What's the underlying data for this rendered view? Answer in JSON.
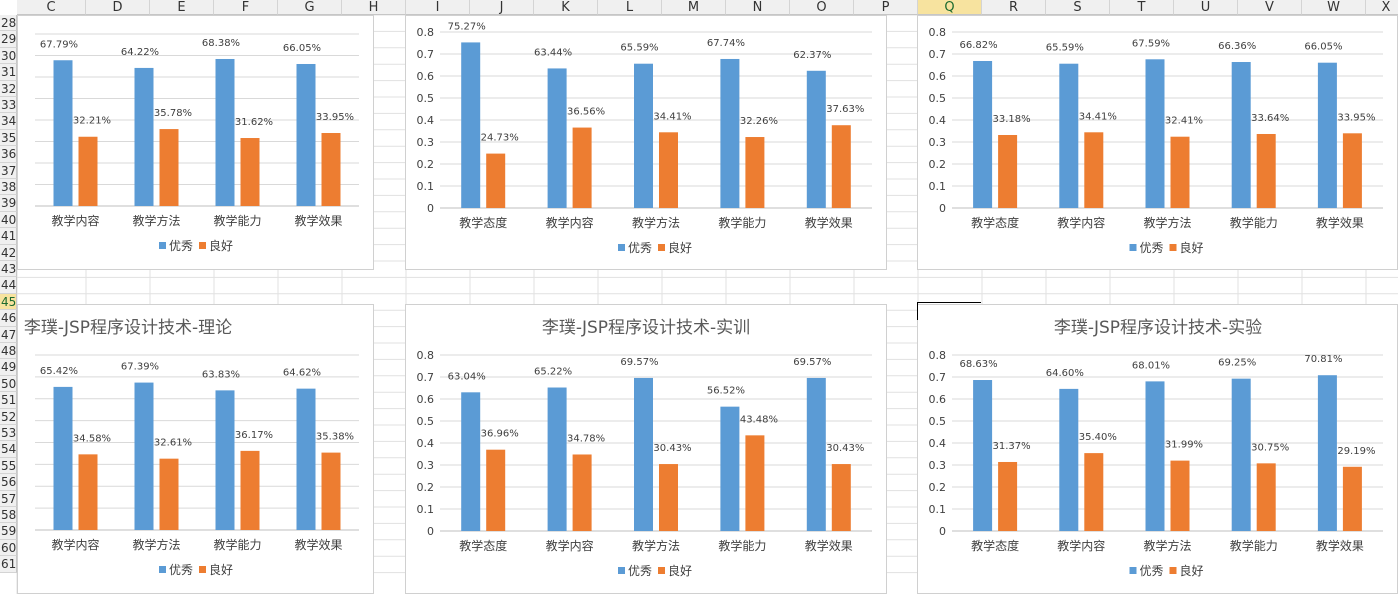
{
  "spreadsheet": {
    "columns": [
      "C",
      "D",
      "E",
      "F",
      "G",
      "H",
      "I",
      "J",
      "K",
      "L",
      "M",
      "N",
      "O",
      "P",
      "Q",
      "R",
      "S",
      "T",
      "U",
      "V",
      "W",
      "X"
    ],
    "selected_column": "Q",
    "rows": [
      "28",
      "29",
      "30",
      "31",
      "32",
      "33",
      "34",
      "35",
      "36",
      "37",
      "38",
      "39",
      "40",
      "41",
      "42",
      "43",
      "44",
      "45",
      "46",
      "47",
      "48",
      "49",
      "50",
      "51",
      "52",
      "53",
      "54",
      "55",
      "56",
      "57",
      "58",
      "59",
      "60",
      "61"
    ],
    "selected_row": "45"
  },
  "colors": {
    "excellent": "#5b9bd5",
    "good": "#ed7d31"
  },
  "chart_data": [
    {
      "type": "bar",
      "title": "",
      "categories": [
        "教学内容",
        "教学方法",
        "教学能力",
        "教学效果"
      ],
      "series": [
        {
          "name": "优秀",
          "values": [
            0.6779,
            0.6422,
            0.6838,
            0.6605
          ],
          "labels": [
            "67.79%",
            "64.22%",
            "68.38%",
            "66.05%"
          ]
        },
        {
          "name": "良好",
          "values": [
            0.3221,
            0.3578,
            0.3162,
            0.3395
          ],
          "labels": [
            "32.21%",
            "35.78%",
            "31.62%",
            "33.95%"
          ]
        }
      ],
      "ylim": [
        0,
        0.8
      ],
      "yticks": [],
      "legend": "bottom"
    },
    {
      "type": "bar",
      "title": "",
      "categories": [
        "教学态度",
        "教学内容",
        "教学方法",
        "教学能力",
        "教学效果"
      ],
      "series": [
        {
          "name": "优秀",
          "values": [
            0.7527,
            0.6344,
            0.6559,
            0.6774,
            0.6237
          ],
          "labels": [
            "75.27%",
            "63.44%",
            "65.59%",
            "67.74%",
            "62.37%"
          ]
        },
        {
          "name": "良好",
          "values": [
            0.2473,
            0.3656,
            0.3441,
            0.3226,
            0.3763
          ],
          "labels": [
            "24.73%",
            "36.56%",
            "34.41%",
            "32.26%",
            "37.63%"
          ]
        }
      ],
      "ylim": [
        0,
        0.8
      ],
      "yticks": [
        "0",
        "0.1",
        "0.2",
        "0.3",
        "0.4",
        "0.5",
        "0.6",
        "0.7",
        "0.8"
      ],
      "legend": "bottom"
    },
    {
      "type": "bar",
      "title": "",
      "categories": [
        "教学态度",
        "教学内容",
        "教学方法",
        "教学能力",
        "教学效果"
      ],
      "series": [
        {
          "name": "优秀",
          "values": [
            0.6682,
            0.6559,
            0.6759,
            0.6636,
            0.6605
          ],
          "labels": [
            "66.82%",
            "65.59%",
            "67.59%",
            "66.36%",
            "66.05%"
          ]
        },
        {
          "name": "良好",
          "values": [
            0.3318,
            0.3441,
            0.3241,
            0.3364,
            0.3395
          ],
          "labels": [
            "33.18%",
            "34.41%",
            "32.41%",
            "33.64%",
            "33.95%"
          ]
        }
      ],
      "ylim": [
        0,
        0.8
      ],
      "yticks": [
        "0",
        "0.1",
        "0.2",
        "0.3",
        "0.4",
        "0.5",
        "0.6",
        "0.7",
        "0.8"
      ],
      "legend": "bottom"
    },
    {
      "type": "bar",
      "title": "李璞-JSP程序设计技术-理论",
      "categories": [
        "教学内容",
        "教学方法",
        "教学能力",
        "教学效果"
      ],
      "series": [
        {
          "name": "优秀",
          "values": [
            0.6542,
            0.6739,
            0.6383,
            0.6462
          ],
          "labels": [
            "65.42%",
            "67.39%",
            "63.83%",
            "64.62%"
          ]
        },
        {
          "name": "良好",
          "values": [
            0.3458,
            0.3261,
            0.3617,
            0.3538
          ],
          "labels": [
            "34.58%",
            "32.61%",
            "36.17%",
            "35.38%"
          ]
        }
      ],
      "ylim": [
        0,
        0.8
      ],
      "yticks": [],
      "legend": "bottom"
    },
    {
      "type": "bar",
      "title": "李璞-JSP程序设计技术-实训",
      "categories": [
        "教学态度",
        "教学内容",
        "教学方法",
        "教学能力",
        "教学效果"
      ],
      "series": [
        {
          "name": "优秀",
          "values": [
            0.6304,
            0.6522,
            0.6957,
            0.5652,
            0.6957
          ],
          "labels": [
            "63.04%",
            "65.22%",
            "69.57%",
            "56.52%",
            "69.57%"
          ]
        },
        {
          "name": "良好",
          "values": [
            0.3696,
            0.3478,
            0.3043,
            0.4348,
            0.3043
          ],
          "labels": [
            "36.96%",
            "34.78%",
            "30.43%",
            "43.48%",
            "30.43%"
          ]
        }
      ],
      "ylim": [
        0,
        0.8
      ],
      "yticks": [
        "0",
        "0.1",
        "0.2",
        "0.3",
        "0.4",
        "0.5",
        "0.6",
        "0.7",
        "0.8"
      ],
      "legend": "bottom"
    },
    {
      "type": "bar",
      "title": "李璞-JSP程序设计技术-实验",
      "categories": [
        "教学态度",
        "教学内容",
        "教学方法",
        "教学能力",
        "教学效果"
      ],
      "series": [
        {
          "name": "优秀",
          "values": [
            0.6863,
            0.646,
            0.6801,
            0.6925,
            0.7081
          ],
          "labels": [
            "68.63%",
            "64.60%",
            "68.01%",
            "69.25%",
            "70.81%"
          ]
        },
        {
          "name": "良好",
          "values": [
            0.3137,
            0.354,
            0.3199,
            0.3075,
            0.2919
          ],
          "labels": [
            "31.37%",
            "35.40%",
            "31.99%",
            "30.75%",
            "29.19%"
          ]
        }
      ],
      "ylim": [
        0,
        0.8
      ],
      "yticks": [
        "0",
        "0.1",
        "0.2",
        "0.3",
        "0.4",
        "0.5",
        "0.6",
        "0.7",
        "0.8"
      ],
      "legend": "bottom"
    }
  ]
}
